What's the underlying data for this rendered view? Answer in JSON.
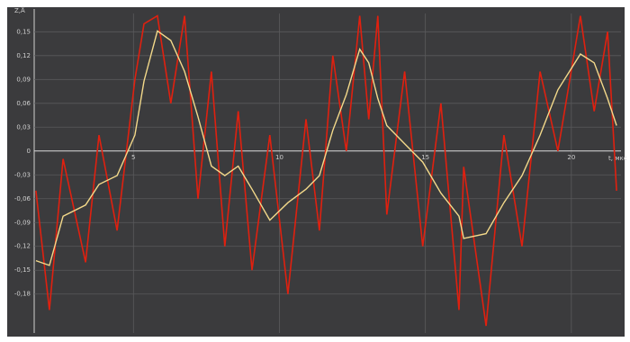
{
  "chart_data": {
    "type": "line",
    "y_label": "Z,Å",
    "x_label": "t, мкс",
    "x": [
      1.66,
      2.12,
      2.59,
      3.36,
      3.82,
      4.44,
      5.05,
      5.36,
      5.82,
      6.28,
      6.75,
      7.21,
      7.67,
      8.13,
      8.59,
      9.06,
      9.67,
      10.29,
      10.91,
      11.37,
      11.83,
      12.29,
      12.75,
      13.06,
      13.37,
      13.68,
      14.29,
      14.91,
      15.53,
      16.15,
      16.31,
      17.08,
      17.69,
      18.31,
      18.93,
      19.54,
      20.31,
      20.78,
      21.24,
      21.55
    ],
    "series": [
      {
        "color": "#e0200f",
        "values": [
          -0.05,
          -0.2,
          -0.01,
          -0.14,
          0.02,
          -0.1,
          0.09,
          0.16,
          0.17,
          0.06,
          0.17,
          -0.06,
          0.1,
          -0.12,
          0.05,
          -0.15,
          0.02,
          -0.18,
          0.04,
          -0.1,
          0.12,
          0.0,
          0.17,
          0.04,
          0.17,
          -0.08,
          0.1,
          -0.12,
          0.06,
          -0.2,
          -0.02,
          -0.22,
          0.02,
          -0.12,
          0.1,
          0.0,
          0.17,
          0.05,
          0.15,
          -0.05
        ]
      },
      {
        "color": "#f3d98a",
        "values": [
          -0.138,
          -0.144,
          -0.082,
          -0.068,
          -0.042,
          -0.031,
          0.02,
          0.088,
          0.151,
          0.139,
          0.1,
          0.043,
          -0.019,
          -0.031,
          -0.019,
          -0.048,
          -0.087,
          -0.065,
          -0.048,
          -0.031,
          0.026,
          0.071,
          0.128,
          0.111,
          0.066,
          0.032,
          0.009,
          -0.014,
          -0.053,
          -0.082,
          -0.11,
          -0.104,
          -0.065,
          -0.031,
          0.02,
          0.077,
          0.122,
          0.111,
          0.066,
          0.032
        ]
      }
    ],
    "xlim": [
      1.6,
      21.7
    ],
    "xticks": [
      5,
      10,
      15,
      20
    ],
    "ylim": [
      -0.229,
      0.173
    ],
    "yticks": [
      {
        "value": 0.15,
        "label": "0,15"
      },
      {
        "value": 0.12,
        "label": "0,12"
      },
      {
        "value": 0.09,
        "label": "0,09"
      },
      {
        "value": 0.06,
        "label": "0,06"
      },
      {
        "value": 0.03,
        "label": "0,03"
      },
      0,
      {
        "value": -0.03,
        "label": "-0,03"
      },
      {
        "value": -0.06,
        "label": "-0,06"
      },
      {
        "value": -0.09,
        "label": "-0,09"
      },
      {
        "value": -0.12,
        "label": "-0,12"
      },
      {
        "value": -0.15,
        "label": "-0,15"
      },
      {
        "value": -0.18,
        "label": "-0,18"
      }
    ],
    "grid": true
  }
}
